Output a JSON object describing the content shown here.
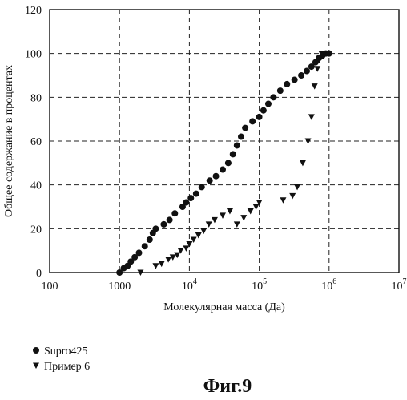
{
  "figure_label": "Фиг.9",
  "chart_data": {
    "type": "scatter",
    "xscale": "log",
    "xlim": [
      100,
      10000000
    ],
    "ylim": [
      0,
      120
    ],
    "xticks": [
      {
        "base": "10",
        "exp": "0",
        "value": 100,
        "text": "100"
      },
      {
        "base": "1000",
        "exp": "",
        "value": 1000,
        "text": "1000"
      },
      {
        "base": "10",
        "exp": "4",
        "value": 10000
      },
      {
        "base": "10",
        "exp": "5",
        "value": 100000
      },
      {
        "base": "10",
        "exp": "6",
        "value": 1000000
      },
      {
        "base": "10",
        "exp": "7",
        "value": 10000000
      }
    ],
    "yticks": [
      "0",
      "20",
      "40",
      "60",
      "80",
      "100",
      "120"
    ],
    "xlabel": "Молекулярная масса (Да)",
    "ylabel": "Общее содержание в процентах",
    "grid": true,
    "legend_position": "bottom-left below chart",
    "series": [
      {
        "name": "Supro425",
        "marker": "circle",
        "x": [
          1000,
          1150,
          1300,
          1450,
          1650,
          1900,
          2300,
          2700,
          3000,
          3300,
          4300,
          5200,
          6200,
          8000,
          9000,
          10500,
          12500,
          15000,
          19500,
          24000,
          30000,
          36000,
          42000,
          48000,
          55000,
          63000,
          80000,
          100000,
          115000,
          135000,
          160000,
          200000,
          250000,
          320000,
          400000,
          480000,
          560000,
          640000,
          720000,
          800000,
          900000,
          1000000
        ],
        "y": [
          0,
          2,
          3,
          5,
          7,
          9,
          12,
          15,
          18,
          20,
          22,
          24,
          27,
          30,
          32,
          34,
          36,
          39,
          42,
          44,
          47,
          50,
          54,
          58,
          62,
          66,
          69,
          71,
          74,
          77,
          80,
          83,
          86,
          88,
          90,
          92,
          94,
          96,
          98,
          99,
          100,
          100
        ]
      },
      {
        "name": "Пример 6",
        "marker": "triangle-down",
        "x": [
          2000,
          3300,
          4000,
          5000,
          5800,
          6700,
          7500,
          9000,
          10000,
          11500,
          13500,
          16000,
          19000,
          23000,
          30000,
          38000,
          48000,
          60000,
          75000,
          90000,
          100000,
          220000,
          300000,
          350000,
          420000,
          500000,
          560000,
          620000,
          680000,
          720000,
          780000
        ],
        "y": [
          0,
          3,
          4,
          6,
          7,
          8,
          10,
          11,
          13,
          15,
          17,
          19,
          22,
          24,
          26,
          28,
          22,
          25,
          28,
          30,
          32,
          33,
          35,
          39,
          50,
          60,
          71,
          85,
          93,
          97,
          100
        ]
      }
    ]
  }
}
